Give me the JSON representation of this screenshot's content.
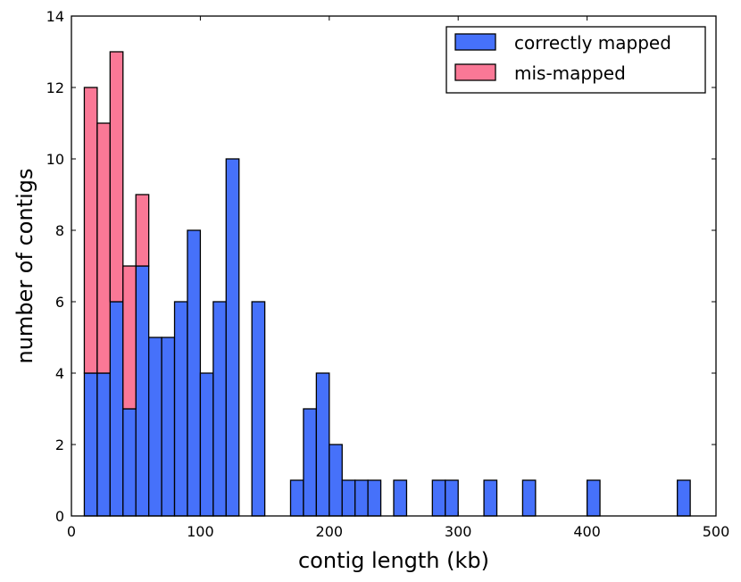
{
  "chart_data": {
    "type": "bar",
    "stacked": true,
    "xlabel": "contig length (kb)",
    "ylabel": "number of contigs",
    "xlim": [
      0,
      500
    ],
    "ylim": [
      0,
      14
    ],
    "xticks": [
      "0",
      "100",
      "200",
      "300",
      "400",
      "500"
    ],
    "yticks": [
      "0",
      "2",
      "4",
      "6",
      "8",
      "10",
      "12",
      "14"
    ],
    "grid": false,
    "legend_position": "top-right",
    "bin_width_kb": 10,
    "series": [
      {
        "name": "correctly mapped",
        "color": "#4671fa",
        "bins": [
          {
            "x": 10,
            "y": 4
          },
          {
            "x": 20,
            "y": 4
          },
          {
            "x": 30,
            "y": 6
          },
          {
            "x": 40,
            "y": 3
          },
          {
            "x": 50,
            "y": 7
          },
          {
            "x": 60,
            "y": 5
          },
          {
            "x": 70,
            "y": 5
          },
          {
            "x": 80,
            "y": 6
          },
          {
            "x": 90,
            "y": 8
          },
          {
            "x": 100,
            "y": 4
          },
          {
            "x": 110,
            "y": 6
          },
          {
            "x": 120,
            "y": 10
          },
          {
            "x": 140,
            "y": 6
          },
          {
            "x": 170,
            "y": 1
          },
          {
            "x": 180,
            "y": 3
          },
          {
            "x": 190,
            "y": 4
          },
          {
            "x": 200,
            "y": 2
          },
          {
            "x": 210,
            "y": 1
          },
          {
            "x": 220,
            "y": 1
          },
          {
            "x": 230,
            "y": 1
          },
          {
            "x": 250,
            "y": 1
          },
          {
            "x": 280,
            "y": 1
          },
          {
            "x": 290,
            "y": 1
          },
          {
            "x": 320,
            "y": 1
          },
          {
            "x": 350,
            "y": 1
          },
          {
            "x": 400,
            "y": 1
          },
          {
            "x": 470,
            "y": 1
          }
        ]
      },
      {
        "name": "mis-mapped",
        "color": "#fa7896",
        "bins": [
          {
            "x": 10,
            "y": 8
          },
          {
            "x": 20,
            "y": 7
          },
          {
            "x": 30,
            "y": 7
          },
          {
            "x": 40,
            "y": 4
          },
          {
            "x": 50,
            "y": 2
          }
        ]
      }
    ]
  }
}
